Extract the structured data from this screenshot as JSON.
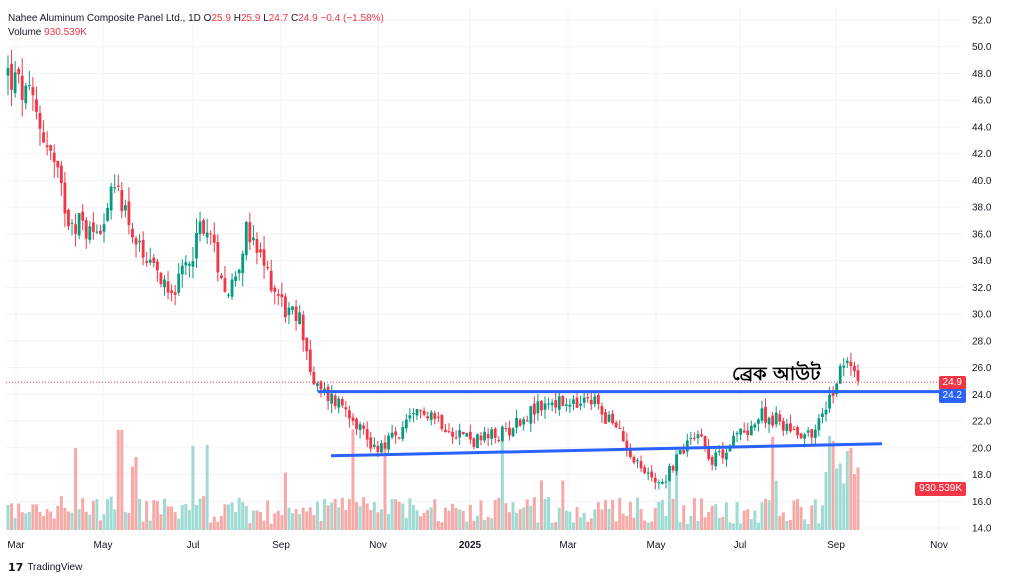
{
  "legend": {
    "title": "Nahee Aluminum Composite Panel Ltd., 1D",
    "o_label": "O",
    "o_val": "25.9",
    "h_label": "H",
    "h_val": "25.9",
    "l_label": "L",
    "l_val": "24.7",
    "c_label": "C",
    "c_val": "24.9",
    "change": "−0.4 (−1.58%)",
    "volume_label": "Volume",
    "volume_val": "930.539K"
  },
  "price_tags": {
    "last_price": "24.9",
    "breakout_level": "24.2",
    "volume": "930.539K"
  },
  "annotation": "ব্রেক আউট",
  "branding": "TradingView",
  "colors": {
    "up": "#089981",
    "down": "#f23645",
    "trendline": "#2962ff",
    "up_volume": "#9fdbd2",
    "down_volume": "#f7a9a7"
  },
  "chart_data": {
    "type": "candlestick",
    "y_ticks": [
      "52.0",
      "50.0",
      "48.0",
      "46.0",
      "44.0",
      "42.0",
      "40.0",
      "38.0",
      "36.0",
      "34.0",
      "32.0",
      "30.0",
      "28.0",
      "26.0",
      "24.0",
      "22.0",
      "20.0",
      "18.0",
      "16.0",
      "14.0"
    ],
    "x_ticks": [
      "Mar",
      "May",
      "Jul",
      "Sep",
      "Nov",
      "2025",
      "Mar",
      "May",
      "Jul",
      "Sep",
      "Nov"
    ],
    "ylim": [
      14,
      52
    ],
    "close_path": [
      {
        "t": 0.0,
        "v": 48.0
      },
      {
        "t": 0.03,
        "v": 45.5
      },
      {
        "t": 0.05,
        "v": 42.0
      },
      {
        "t": 0.07,
        "v": 37.5
      },
      {
        "t": 0.1,
        "v": 36.0
      },
      {
        "t": 0.13,
        "v": 39.5
      },
      {
        "t": 0.16,
        "v": 33.5
      },
      {
        "t": 0.2,
        "v": 32.0
      },
      {
        "t": 0.23,
        "v": 37.0
      },
      {
        "t": 0.26,
        "v": 31.5
      },
      {
        "t": 0.28,
        "v": 36.0
      },
      {
        "t": 0.31,
        "v": 32.5
      },
      {
        "t": 0.33,
        "v": 30.0
      },
      {
        "t": 0.345,
        "v": 29.5
      },
      {
        "t": 0.36,
        "v": 24.5
      },
      {
        "t": 0.4,
        "v": 23.0
      },
      {
        "t": 0.43,
        "v": 20.0
      },
      {
        "t": 0.46,
        "v": 21.0
      },
      {
        "t": 0.49,
        "v": 23.0
      },
      {
        "t": 0.52,
        "v": 21.5
      },
      {
        "t": 0.55,
        "v": 20.5
      },
      {
        "t": 0.58,
        "v": 21.0
      },
      {
        "t": 0.61,
        "v": 22.5
      },
      {
        "t": 0.64,
        "v": 23.5
      },
      {
        "t": 0.66,
        "v": 23.0
      },
      {
        "t": 0.69,
        "v": 23.5
      },
      {
        "t": 0.72,
        "v": 21.0
      },
      {
        "t": 0.75,
        "v": 18.0
      },
      {
        "t": 0.77,
        "v": 17.5
      },
      {
        "t": 0.79,
        "v": 19.5
      },
      {
        "t": 0.81,
        "v": 21.5
      },
      {
        "t": 0.83,
        "v": 19.0
      },
      {
        "t": 0.86,
        "v": 21.0
      },
      {
        "t": 0.89,
        "v": 22.5
      },
      {
        "t": 0.92,
        "v": 21.5
      },
      {
        "t": 0.945,
        "v": 21.0
      },
      {
        "t": 0.96,
        "v": 22.5
      },
      {
        "t": 0.975,
        "v": 25.0
      },
      {
        "t": 0.985,
        "v": 26.8
      },
      {
        "t": 1.0,
        "v": 24.9
      }
    ],
    "horizontal_line": {
      "value": 24.2,
      "label": "24.2"
    },
    "support_trendline": {
      "from": {
        "date": "Oct",
        "value": 19.4
      },
      "to": {
        "date": "Oct",
        "value": 20.3
      }
    },
    "last_close": 24.9
  }
}
